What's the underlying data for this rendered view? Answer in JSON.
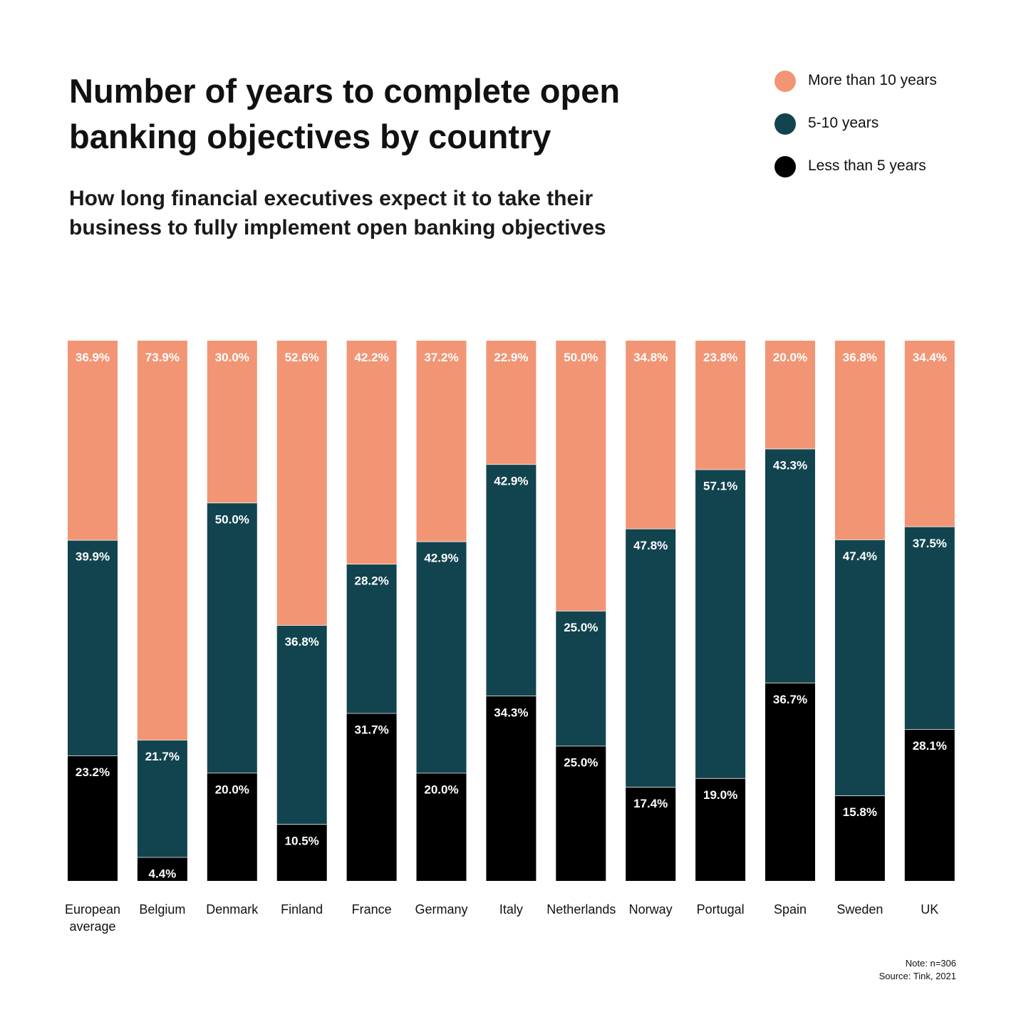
{
  "chart_data": {
    "type": "stacked_bar",
    "title": "Number of years to complete open banking objectives by country",
    "subtitle": "How long financial executives expect it to take their business to fully implement open banking objectives",
    "categories": [
      "European average",
      "Belgium",
      "Denmark",
      "Finland",
      "France",
      "Germany",
      "Italy",
      "Netherlands",
      "Norway",
      "Portugal",
      "Spain",
      "Sweden",
      "UK"
    ],
    "series": [
      {
        "name": "More than 10 years",
        "color": "#f29574",
        "values": [
          36.9,
          73.9,
          30.0,
          52.6,
          42.2,
          37.2,
          22.9,
          50.0,
          34.8,
          23.8,
          20.0,
          36.8,
          34.4
        ],
        "value_labels": [
          "36.9%",
          "73.9%",
          "30.0%",
          "52.6%",
          "42.2%",
          "37.2%",
          "22.9%",
          "50.0%",
          "34.8%",
          "23.8%",
          "20.0%",
          "36.8%",
          "34.4%"
        ]
      },
      {
        "name": "5-10 years",
        "color": "#12444f",
        "values": [
          39.9,
          21.7,
          50.0,
          36.8,
          28.2,
          42.9,
          42.9,
          25.0,
          47.8,
          57.1,
          43.3,
          47.4,
          37.5
        ],
        "value_labels": [
          "39.9%",
          "21.7%",
          "50.0%",
          "36.8%",
          "28.2%",
          "42.9%",
          "42.9%",
          "25.0%",
          "47.8%",
          "57.1%",
          "43.3%",
          "47.4%",
          "37.5%"
        ]
      },
      {
        "name": "Less than 5 years",
        "color": "#000000",
        "values": [
          23.2,
          4.4,
          20.0,
          10.5,
          31.7,
          20.0,
          34.3,
          25.0,
          17.4,
          19.0,
          36.7,
          15.8,
          28.1
        ],
        "value_labels": [
          "23.2%",
          "4.4%",
          "20.0%",
          "10.5%",
          "31.7%",
          "20.0%",
          "34.3%",
          "25.0%",
          "17.4%",
          "19.0%",
          "36.7%",
          "15.8%",
          "28.1%"
        ]
      }
    ],
    "notes": [
      "Note: n=306",
      "Source: Tink, 2021"
    ]
  }
}
